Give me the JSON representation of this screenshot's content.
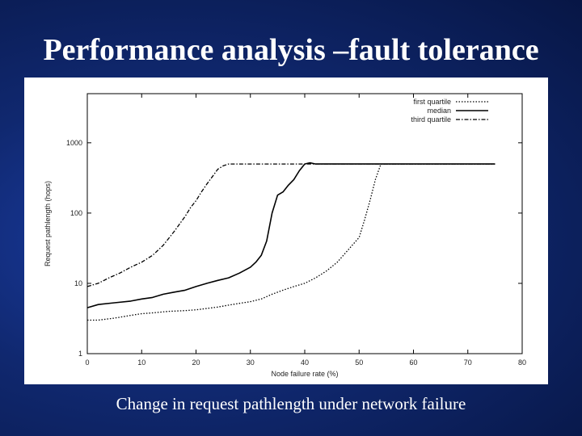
{
  "slide": {
    "title": "Performance analysis –fault tolerance",
    "caption": "Change in request pathlength under network failure"
  },
  "colors": {
    "background": "#10286f",
    "text": "#ffffff",
    "plot_line": "#000000"
  },
  "chart_data": {
    "type": "line",
    "xlabel": "Node failure rate (%)",
    "ylabel": "Request pathlength (hops)",
    "xlim": [
      0,
      80
    ],
    "ylim": [
      1,
      5000
    ],
    "yscale": "log",
    "grid": false,
    "legend_position": "top-right",
    "xticks": [
      "0",
      "10",
      "20",
      "30",
      "40",
      "50",
      "60",
      "70",
      "80"
    ],
    "yticks": [
      "1",
      "10",
      "100",
      "1000"
    ],
    "series": [
      {
        "name": "first quartile",
        "style": "dotted",
        "x": [
          0,
          2,
          5,
          8,
          10,
          12,
          15,
          18,
          20,
          22,
          24,
          26,
          28,
          30,
          32,
          34,
          36,
          38,
          40,
          42,
          44,
          46,
          48,
          50,
          51,
          52,
          53,
          54,
          55,
          60,
          65,
          70,
          75
        ],
        "values": [
          3,
          3,
          3.2,
          3.5,
          3.7,
          3.8,
          4,
          4.1,
          4.2,
          4.4,
          4.6,
          4.9,
          5.2,
          5.5,
          6,
          7,
          8,
          9,
          10,
          12,
          15,
          20,
          30,
          45,
          80,
          150,
          300,
          500,
          500,
          500,
          500,
          500,
          500
        ]
      },
      {
        "name": "median",
        "style": "solid",
        "x": [
          0,
          2,
          5,
          8,
          10,
          12,
          14,
          16,
          18,
          20,
          22,
          24,
          26,
          28,
          30,
          31,
          32,
          33,
          34,
          35,
          36,
          37,
          38,
          39,
          40,
          41,
          42,
          44,
          46,
          50,
          55,
          60,
          65,
          70,
          75
        ],
        "values": [
          4.5,
          5,
          5.3,
          5.6,
          6,
          6.3,
          7,
          7.5,
          8,
          9,
          10,
          11,
          12,
          14,
          17,
          20,
          25,
          40,
          100,
          180,
          200,
          250,
          300,
          400,
          500,
          520,
          500,
          500,
          500,
          500,
          500,
          500,
          500,
          500,
          500
        ]
      },
      {
        "name": "third quartile",
        "style": "dash-dot",
        "x": [
          0,
          2,
          4,
          6,
          8,
          10,
          12,
          14,
          16,
          18,
          19,
          20,
          21,
          22,
          23,
          24,
          25,
          26,
          28,
          30,
          35,
          40,
          45,
          50,
          55,
          60,
          65,
          70,
          75
        ],
        "values": [
          9,
          10,
          12,
          14,
          17,
          20,
          25,
          35,
          55,
          90,
          120,
          150,
          200,
          260,
          330,
          420,
          470,
          500,
          500,
          500,
          500,
          500,
          500,
          500,
          500,
          500,
          500,
          500,
          500
        ]
      }
    ]
  }
}
